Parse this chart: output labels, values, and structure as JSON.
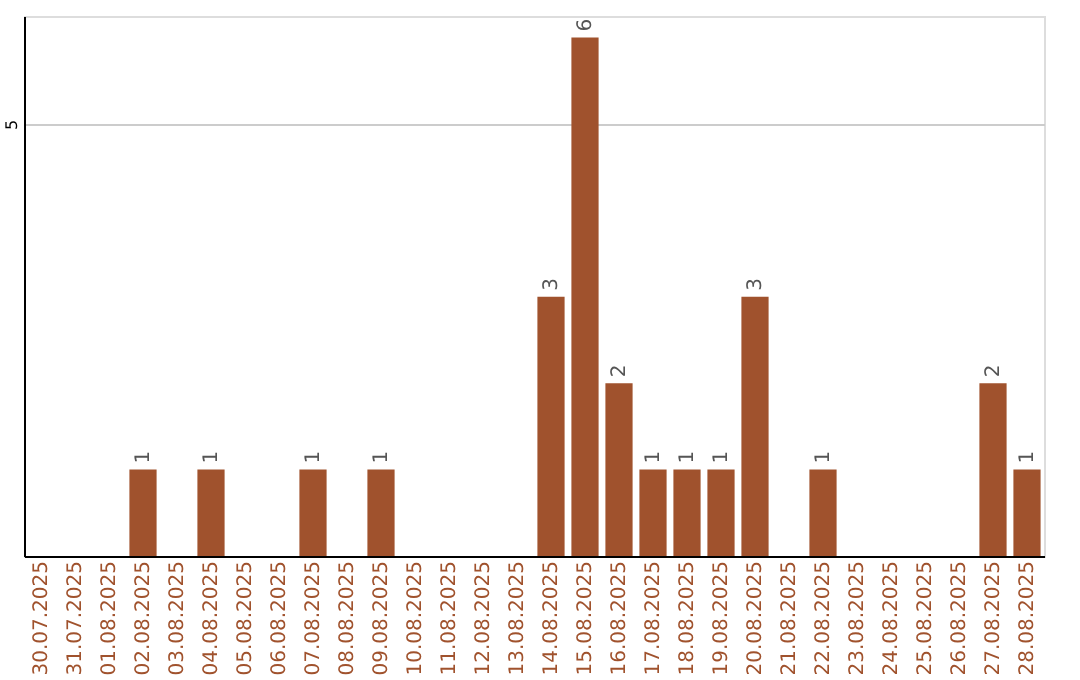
{
  "chart_data": {
    "type": "bar",
    "categories": [
      "30.07.2025",
      "31.07.2025",
      "01.08.2025",
      "02.08.2025",
      "03.08.2025",
      "04.08.2025",
      "05.08.2025",
      "06.08.2025",
      "07.08.2025",
      "08.08.2025",
      "09.08.2025",
      "10.08.2025",
      "11.08.2025",
      "12.08.2025",
      "13.08.2025",
      "14.08.2025",
      "15.08.2025",
      "16.08.2025",
      "17.08.2025",
      "18.08.2025",
      "19.08.2025",
      "20.08.2025",
      "21.08.2025",
      "22.08.2025",
      "23.08.2025",
      "24.08.2025",
      "25.08.2025",
      "26.08.2025",
      "27.08.2025",
      "28.08.2025"
    ],
    "values": [
      0,
      0,
      0,
      1,
      0,
      1,
      0,
      0,
      1,
      0,
      1,
      0,
      0,
      0,
      0,
      3,
      6,
      2,
      1,
      1,
      1,
      3,
      0,
      1,
      0,
      0,
      0,
      0,
      2,
      1
    ],
    "value_labels": [
      null,
      null,
      null,
      "1",
      null,
      "1",
      null,
      null,
      "1",
      null,
      "1",
      null,
      null,
      null,
      null,
      "3",
      "6",
      "2",
      "1",
      "1",
      "1",
      "3",
      null,
      "1",
      null,
      null,
      null,
      null,
      "2",
      "1"
    ],
    "color": "#a0522d",
    "ylim": [
      0,
      6.25
    ],
    "yticks": [
      5
    ],
    "grid": "y"
  }
}
